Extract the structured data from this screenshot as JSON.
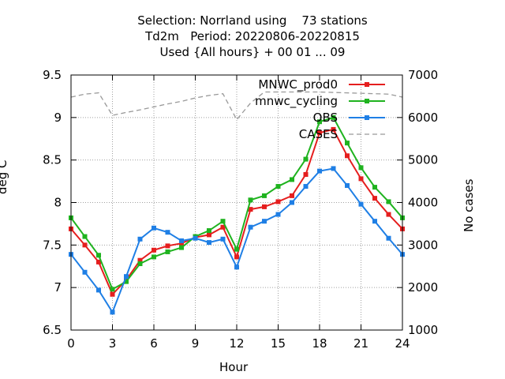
{
  "chart_data": {
    "type": "line",
    "title_lines": [
      "Selection: Norrland using    73 stations",
      "Td2m   Period: 20220806-20220815",
      "Used {All hours} + 00 01 ... 09"
    ],
    "xlabel": "Hour",
    "ylabel": "deg C",
    "y2label": "No cases",
    "xlim": [
      0,
      24
    ],
    "ylim": [
      6.5,
      9.5
    ],
    "y2lim": [
      1000,
      7000
    ],
    "xticks": [
      "0",
      "3",
      "6",
      "9",
      "12",
      "15",
      "18",
      "21",
      "24"
    ],
    "yticks": [
      "6.5",
      "7",
      "7.5",
      "8",
      "8.5",
      "9",
      "9.5"
    ],
    "y2ticks": [
      "1000",
      "2000",
      "3000",
      "4000",
      "5000",
      "6000",
      "7000"
    ],
    "grid": true,
    "legend_position": "top-right",
    "x": [
      0,
      1,
      2,
      3,
      4,
      5,
      6,
      7,
      8,
      9,
      10,
      11,
      12,
      13,
      14,
      15,
      16,
      17,
      18,
      19,
      20,
      21,
      22,
      23,
      24
    ],
    "series": [
      {
        "name": "MNWC_prod0",
        "color": "#e51e1e",
        "marker": "square",
        "axis": "left",
        "values": [
          7.69,
          7.5,
          7.3,
          6.92,
          7.09,
          7.32,
          7.44,
          7.49,
          7.52,
          7.59,
          7.62,
          7.71,
          7.36,
          7.92,
          7.95,
          8.01,
          8.08,
          8.33,
          8.82,
          8.86,
          8.55,
          8.28,
          8.05,
          7.86,
          7.69
        ]
      },
      {
        "name": "mnwc_cycling",
        "color": "#1fb31f",
        "marker": "square",
        "axis": "left",
        "values": [
          7.82,
          7.6,
          7.38,
          6.98,
          7.07,
          7.28,
          7.36,
          7.42,
          7.47,
          7.6,
          7.67,
          7.78,
          7.45,
          8.03,
          8.08,
          8.19,
          8.27,
          8.51,
          8.95,
          9.0,
          8.7,
          8.41,
          8.18,
          8.01,
          7.82
        ]
      },
      {
        "name": "OBS",
        "color": "#1f7fe5",
        "marker": "square",
        "axis": "left",
        "values": [
          7.39,
          7.18,
          6.97,
          6.71,
          7.13,
          7.57,
          7.7,
          7.65,
          7.55,
          7.58,
          7.53,
          7.57,
          7.24,
          7.71,
          7.78,
          7.86,
          8.0,
          8.19,
          8.37,
          8.4,
          8.2,
          7.98,
          7.78,
          7.58,
          7.39
        ]
      },
      {
        "name": "CASES",
        "color": "#999999",
        "marker": "none",
        "axis": "right",
        "dashed": true,
        "values": [
          6480,
          6550,
          6580,
          6050,
          6120,
          6180,
          6250,
          6320,
          6380,
          6460,
          6520,
          6560,
          5950,
          6340,
          6600,
          6600,
          6600,
          6600,
          6600,
          6590,
          6580,
          6570,
          6560,
          6550,
          6480
        ]
      }
    ]
  }
}
